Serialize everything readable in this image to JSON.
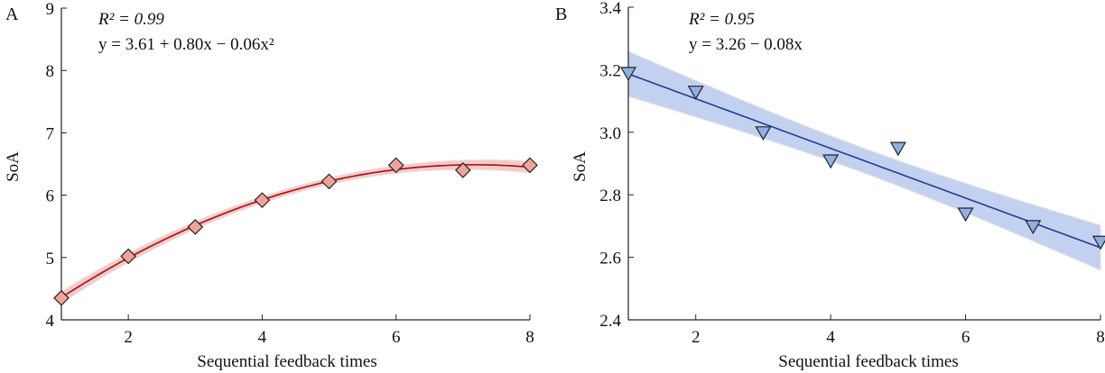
{
  "chart_data": [
    {
      "type": "scatter",
      "panel_label": "A",
      "xlabel": "Sequential feedback times",
      "ylabel": "SoA",
      "xlim": [
        1,
        8
      ],
      "ylim": [
        4,
        9
      ],
      "xticks": [
        2,
        4,
        6,
        8
      ],
      "yticks": [
        4,
        5,
        6,
        7,
        8,
        9
      ],
      "grid": false,
      "marker": "diamond",
      "marker_color": "#f0a39b",
      "line_color": "#a50f15",
      "band_color": "#f6c9c6",
      "fit": "quadratic",
      "annotation": {
        "r2": "R² = 0.99",
        "equation": "y = 3.61 + 0.80x − 0.06x²"
      },
      "x": [
        1,
        2,
        3,
        4,
        5,
        6,
        7,
        8
      ],
      "y": [
        4.35,
        5.02,
        5.49,
        5.92,
        6.22,
        6.48,
        6.4,
        6.48
      ]
    },
    {
      "type": "scatter",
      "panel_label": "B",
      "xlabel": "Sequential feedback times",
      "ylabel": "SoA",
      "xlim": [
        1,
        8
      ],
      "ylim": [
        2.4,
        3.4
      ],
      "xticks": [
        2,
        4,
        6,
        8
      ],
      "yticks": [
        2.4,
        2.6,
        2.8,
        3.0,
        3.2,
        3.4
      ],
      "grid": false,
      "marker": "triangle-down",
      "marker_color": "#8fb0e6",
      "line_color": "#1f3d99",
      "band_color": "#c3d1f0",
      "fit": "linear",
      "annotation": {
        "r2": "R² = 0.95",
        "equation": "y = 3.26 − 0.08x"
      },
      "x": [
        1,
        2,
        3,
        4,
        5,
        6,
        7,
        8
      ],
      "y": [
        3.19,
        3.13,
        3.0,
        2.91,
        2.95,
        2.74,
        2.7,
        2.65
      ]
    }
  ]
}
